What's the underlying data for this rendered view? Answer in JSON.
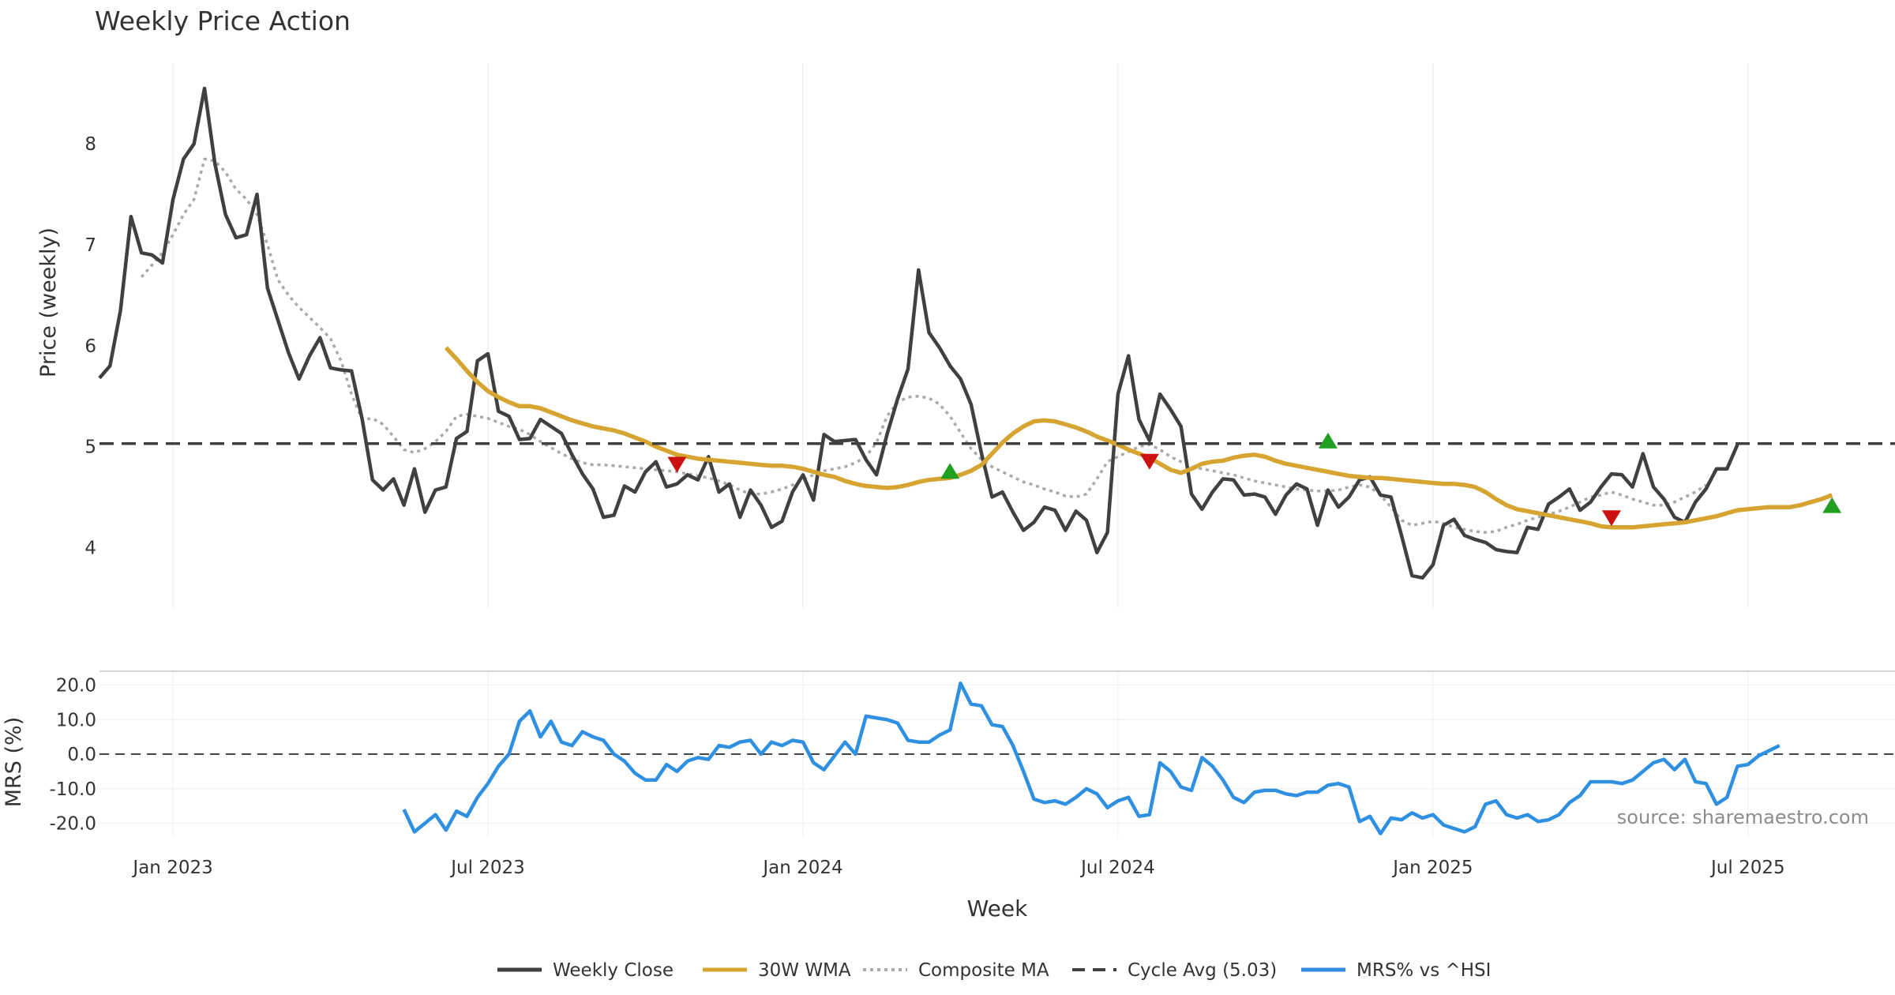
{
  "chart_data": {
    "type": "line",
    "title": "Weekly Price Action",
    "xlabel": "Week",
    "source": "source: sharemaestro.com",
    "x_ticks": [
      "Jan 2023",
      "Jul 2023",
      "Jan 2024",
      "Jul 2024",
      "Jan 2025",
      "Jul 2025"
    ],
    "x_tick_weeks": [
      7,
      37,
      67,
      97,
      127,
      157
    ],
    "price_panel": {
      "ylabel": "Price (weekly)",
      "ylim": [
        3.4,
        8.8
      ],
      "y_ticks": [
        4,
        5,
        6,
        7,
        8
      ],
      "y_tick_labels": [
        "4",
        "5",
        "6",
        "7",
        "8"
      ],
      "cycle_avg": 5.03
    },
    "mrs_panel": {
      "ylabel": "MRS (%)",
      "ylim": [
        -24,
        24
      ],
      "y_ticks": [
        20,
        10,
        0,
        -10,
        -20
      ],
      "y_tick_labels": [
        "20.0",
        "10.0",
        "0.0",
        "-10.0",
        "-20.0"
      ]
    },
    "series": [
      {
        "name": "Weekly Close",
        "color": "#404040",
        "start_week": 0,
        "values": [
          5.68,
          5.8,
          6.35,
          7.28,
          6.92,
          6.9,
          6.82,
          7.45,
          7.85,
          8.0,
          8.55,
          7.8,
          7.3,
          7.07,
          7.1,
          7.5,
          6.57,
          6.25,
          5.93,
          5.67,
          5.9,
          6.08,
          5.78,
          5.76,
          5.75,
          5.28,
          4.67,
          4.57,
          4.68,
          4.42,
          4.78,
          4.35,
          4.57,
          4.6,
          5.08,
          5.15,
          5.85,
          5.92,
          5.35,
          5.3,
          5.07,
          5.08,
          5.27,
          5.2,
          5.13,
          4.92,
          4.73,
          4.58,
          4.3,
          4.32,
          4.61,
          4.55,
          4.75,
          4.85,
          4.6,
          4.63,
          4.72,
          4.67,
          4.9,
          4.55,
          4.63,
          4.3,
          4.57,
          4.42,
          4.2,
          4.26,
          4.55,
          4.72,
          4.47,
          5.12,
          5.05,
          5.06,
          5.07,
          4.87,
          4.72,
          5.12,
          5.47,
          5.77,
          6.75,
          6.13,
          5.98,
          5.8,
          5.67,
          5.42,
          4.93,
          4.5,
          4.55,
          4.35,
          4.17,
          4.25,
          4.4,
          4.37,
          4.17,
          4.36,
          4.27,
          3.95,
          4.15,
          5.52,
          5.9,
          5.27,
          5.06,
          5.52,
          5.37,
          5.2,
          4.53,
          4.38,
          4.55,
          4.68,
          4.67,
          4.52,
          4.53,
          4.5,
          4.33,
          4.52,
          4.63,
          4.58,
          4.22,
          4.57,
          4.4,
          4.5,
          4.67,
          4.7,
          4.52,
          4.5,
          4.12,
          3.72,
          3.7,
          3.83,
          4.22,
          4.28,
          4.12,
          4.08,
          4.05,
          3.98,
          3.96,
          3.95,
          4.2,
          4.18,
          4.43,
          4.5,
          4.58,
          4.37,
          4.45,
          4.6,
          4.73,
          4.72,
          4.6,
          4.93,
          4.6,
          4.48,
          4.3,
          4.25,
          4.45,
          4.58,
          4.78,
          4.78,
          5.02
        ]
      },
      {
        "name": "30W WMA",
        "color": "#d6a431",
        "start_week": 33,
        "values": [
          5.98,
          5.87,
          5.75,
          5.64,
          5.55,
          5.49,
          5.44,
          5.4,
          5.4,
          5.38,
          5.34,
          5.3,
          5.26,
          5.23,
          5.2,
          5.18,
          5.16,
          5.13,
          5.09,
          5.05,
          5.0,
          4.96,
          4.92,
          4.9,
          4.88,
          4.87,
          4.86,
          4.85,
          4.84,
          4.83,
          4.82,
          4.81,
          4.81,
          4.8,
          4.78,
          4.75,
          4.72,
          4.7,
          4.66,
          4.63,
          4.61,
          4.6,
          4.59,
          4.6,
          4.62,
          4.65,
          4.67,
          4.68,
          4.69,
          4.72,
          4.76,
          4.82,
          4.93,
          5.04,
          5.13,
          5.2,
          5.25,
          5.26,
          5.25,
          5.22,
          5.19,
          5.15,
          5.1,
          5.06,
          5.02,
          4.97,
          4.93,
          4.89,
          4.83,
          4.77,
          4.74,
          4.78,
          4.83,
          4.85,
          4.86,
          4.89,
          4.91,
          4.92,
          4.9,
          4.86,
          4.83,
          4.81,
          4.79,
          4.77,
          4.75,
          4.73,
          4.71,
          4.7,
          4.69,
          4.69,
          4.68,
          4.67,
          4.66,
          4.65,
          4.64,
          4.63,
          4.63,
          4.62,
          4.6,
          4.55,
          4.48,
          4.42,
          4.38,
          4.36,
          4.34,
          4.32,
          4.3,
          4.28,
          4.26,
          4.24,
          4.21,
          4.2,
          4.2,
          4.2,
          4.21,
          4.22,
          4.23,
          4.24,
          4.25,
          4.27,
          4.29,
          4.31,
          4.34,
          4.37,
          4.38,
          4.39,
          4.4,
          4.4,
          4.4,
          4.42,
          4.45,
          4.48,
          4.52
        ]
      },
      {
        "name": "Composite MA",
        "color": "#aaaaaa",
        "start_week": 4,
        "values": [
          6.68,
          6.8,
          6.92,
          7.1,
          7.3,
          7.45,
          7.85,
          7.83,
          7.72,
          7.55,
          7.45,
          7.3,
          7.0,
          6.65,
          6.5,
          6.38,
          6.28,
          6.18,
          6.07,
          5.85,
          5.52,
          5.27,
          5.28,
          5.22,
          5.1,
          4.97,
          4.94,
          4.98,
          5.05,
          5.15,
          5.3,
          5.32,
          5.3,
          5.28,
          5.24,
          5.2,
          5.17,
          5.12,
          5.05,
          4.99,
          4.93,
          4.88,
          4.84,
          4.82,
          4.82,
          4.81,
          4.8,
          4.79,
          4.78,
          4.77,
          4.76,
          4.75,
          4.73,
          4.71,
          4.69,
          4.66,
          4.62,
          4.57,
          4.53,
          4.53,
          4.55,
          4.58,
          4.62,
          4.67,
          4.72,
          4.76,
          4.78,
          4.8,
          4.84,
          4.9,
          5.04,
          5.3,
          5.44,
          5.49,
          5.5,
          5.48,
          5.42,
          5.3,
          5.14,
          4.98,
          4.87,
          4.8,
          4.75,
          4.7,
          4.65,
          4.62,
          4.58,
          4.55,
          4.51,
          4.5,
          4.53,
          4.68,
          4.85,
          4.9,
          4.95,
          5.0,
          5.02,
          4.97,
          4.9,
          4.85,
          4.8,
          4.78,
          4.76,
          4.74,
          4.72,
          4.69,
          4.66,
          4.64,
          4.62,
          4.6,
          4.58,
          4.57,
          4.56,
          4.56,
          4.57,
          4.6,
          4.62,
          4.6,
          4.52,
          4.4,
          4.27,
          4.22,
          4.24,
          4.26,
          4.24,
          4.2,
          4.18,
          4.16,
          4.15,
          4.16,
          4.2,
          4.23,
          4.27,
          4.3,
          4.33,
          4.36,
          4.4,
          4.45,
          4.5,
          4.52,
          4.55,
          4.52,
          4.48,
          4.45,
          4.42,
          4.42,
          4.45,
          4.5,
          4.55,
          4.62
        ]
      },
      {
        "name": "Cycle Avg (5.03)",
        "color": "#404040",
        "value": 5.03
      },
      {
        "name": "MRS% vs ^HSI",
        "color": "#2f8fe0",
        "start_week": 29,
        "values": [
          -16,
          -22.5,
          -20,
          -17.5,
          -22,
          -16.5,
          -18,
          -12.5,
          -8.5,
          -3.5,
          0,
          9.5,
          12.5,
          5,
          9.5,
          3.5,
          2.5,
          6.5,
          5,
          4,
          0,
          -2,
          -5.5,
          -7.5,
          -7.5,
          -3,
          -5,
          -2,
          -1,
          -1.5,
          2.5,
          2,
          3.5,
          4,
          0,
          3.5,
          2.5,
          4,
          3.5,
          -2.5,
          -4.5,
          -0.5,
          3.5,
          0,
          11,
          10.5,
          10,
          9,
          4,
          3.5,
          3.5,
          5.5,
          7,
          20.5,
          14.5,
          14,
          8.5,
          8,
          2.5,
          -5,
          -13,
          -14,
          -13.5,
          -14.5,
          -12.5,
          -10,
          -11.5,
          -15.5,
          -13.5,
          -12.5,
          -18,
          -17.5,
          -2.5,
          -5,
          -9.5,
          -10.5,
          -1,
          -3.5,
          -7.5,
          -12.5,
          -14,
          -11,
          -10.5,
          -10.5,
          -11.5,
          -12,
          -11,
          -11,
          -9,
          -8.5,
          -9.5,
          -19.5,
          -18,
          -23,
          -18.5,
          -19,
          -17,
          -18.5,
          -17.5,
          -20.5,
          -21.5,
          -22.5,
          -21,
          -14.5,
          -13.5,
          -17.5,
          -18.5,
          -17.5,
          -19.5,
          -19,
          -17.5,
          -14,
          -12,
          -8,
          -8,
          -8,
          -8.5,
          -7.5,
          -5,
          -2.5,
          -1.5,
          -4.5,
          -1.5,
          -8,
          -8.5,
          -14.5,
          -12.5,
          -3.5,
          -3,
          -0.5,
          1,
          2.5
        ]
      }
    ],
    "signals": [
      {
        "type": "sell",
        "week": 55,
        "value": 4.82,
        "color": "#cc1111"
      },
      {
        "type": "buy",
        "week": 81,
        "value": 4.76,
        "color": "#22a022"
      },
      {
        "type": "sell",
        "week": 100,
        "value": 4.85,
        "color": "#cc1111"
      },
      {
        "type": "buy",
        "week": 117,
        "value": 5.06,
        "color": "#22a022"
      },
      {
        "type": "sell",
        "week": 144,
        "value": 4.29,
        "color": "#cc1111"
      },
      {
        "type": "buy",
        "week": 165,
        "value": 4.42,
        "color": "#22a022"
      }
    ],
    "legend": {
      "placement": "bottom-center",
      "entries": [
        {
          "label": "Weekly Close",
          "style": "solid",
          "color": "#404040"
        },
        {
          "label": "30W WMA",
          "style": "solid",
          "color": "#d6a431"
        },
        {
          "label": "Composite MA",
          "style": "dotted",
          "color": "#aaaaaa"
        },
        {
          "label": "Cycle Avg (5.03)",
          "style": "dashed",
          "color": "#404040"
        },
        {
          "label": "MRS% vs ^HSI",
          "style": "solid",
          "color": "#2f8fe0"
        }
      ]
    }
  }
}
